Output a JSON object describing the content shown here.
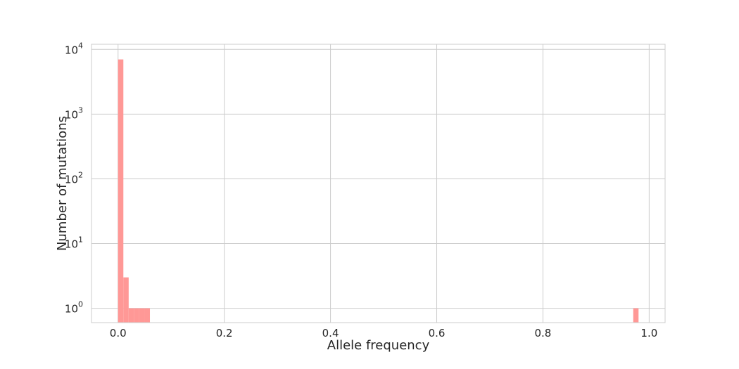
{
  "chart_data": {
    "type": "bar",
    "xlabel": "Allele frequency",
    "ylabel": "Number of mutations",
    "xlim": [
      -0.05,
      1.03
    ],
    "ylim": [
      0.6,
      12000
    ],
    "yscale": "log",
    "grid": true,
    "bar_color": "#ff9896",
    "x_ticks": [
      {
        "value": 0.0,
        "label": "0.0"
      },
      {
        "value": 0.2,
        "label": "0.2"
      },
      {
        "value": 0.4,
        "label": "0.4"
      },
      {
        "value": 0.6,
        "label": "0.6"
      },
      {
        "value": 0.8,
        "label": "0.8"
      },
      {
        "value": 1.0,
        "label": "1.0"
      }
    ],
    "y_ticks": [
      {
        "value": 1,
        "base": "10",
        "exp": "0"
      },
      {
        "value": 10,
        "base": "10",
        "exp": "1"
      },
      {
        "value": 100,
        "base": "10",
        "exp": "2"
      },
      {
        "value": 1000,
        "base": "10",
        "exp": "3"
      },
      {
        "value": 10000,
        "base": "10",
        "exp": "4"
      }
    ],
    "bins": [
      {
        "x0": 0.0,
        "x1": 0.01,
        "count": 7000
      },
      {
        "x0": 0.01,
        "x1": 0.02,
        "count": 3
      },
      {
        "x0": 0.02,
        "x1": 0.03,
        "count": 1
      },
      {
        "x0": 0.03,
        "x1": 0.04,
        "count": 1
      },
      {
        "x0": 0.04,
        "x1": 0.05,
        "count": 1
      },
      {
        "x0": 0.05,
        "x1": 0.06,
        "count": 1
      },
      {
        "x0": 0.97,
        "x1": 0.98,
        "count": 1
      }
    ]
  }
}
